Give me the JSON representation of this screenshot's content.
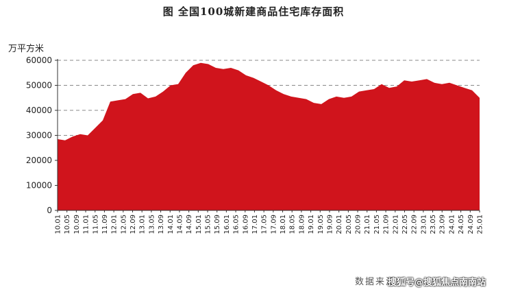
{
  "page": {
    "title": "图 全国100城新建商品住宅库存面积",
    "source_note": "数据来源：",
    "watermark": "搜狐号@搜狐焦点南南站"
  },
  "chart_data": {
    "type": "area",
    "title": "图 全国100城新建商品住宅库存面积",
    "ylabel": "万平方米",
    "xlabel": "",
    "ylim": [
      0,
      60000
    ],
    "yticks": [
      0,
      10000,
      20000,
      30000,
      40000,
      50000,
      60000
    ],
    "grid": "dashed horizontal at 30000, 40000, 50000, 60000",
    "color": "#d0141c",
    "xticks": [
      "10.01",
      "10.05",
      "10.09",
      "11.01",
      "11.05",
      "11.09",
      "12.01",
      "12.05",
      "12.09",
      "13.01",
      "13.05",
      "13.09",
      "14.01",
      "14.05",
      "14.09",
      "15.01",
      "15.05",
      "15.09",
      "16.01",
      "16.05",
      "16.09",
      "17.01",
      "17.05",
      "17.09",
      "18.01",
      "18.05",
      "18.09",
      "19.01",
      "19.05",
      "19.09",
      "20.01",
      "20.05",
      "20.09",
      "21.01",
      "21.05",
      "21.09",
      "22.01",
      "22.05",
      "22.09",
      "23.01",
      "23.05",
      "23.09",
      "24.01",
      "24.05",
      "24.09",
      "25.01"
    ],
    "values": [
      28500,
      28000,
      29500,
      30500,
      30000,
      33000,
      36000,
      43500,
      44000,
      44500,
      46500,
      47000,
      44800,
      45500,
      47500,
      50000,
      50500,
      55000,
      58000,
      59000,
      58500,
      57000,
      56500,
      57000,
      56000,
      54000,
      53000,
      51500,
      50000,
      48000,
      46500,
      45500,
      45000,
      44500,
      43000,
      42500,
      44500,
      45500,
      45000,
      45500,
      47500,
      48000,
      48500,
      50500,
      49000,
      49500,
      52000,
      51500,
      52000,
      52500,
      51000,
      50500,
      51000,
      50000,
      49000,
      48000,
      45000
    ],
    "x_positions_note": "values evenly spaced from 10.01 to 25.01"
  }
}
